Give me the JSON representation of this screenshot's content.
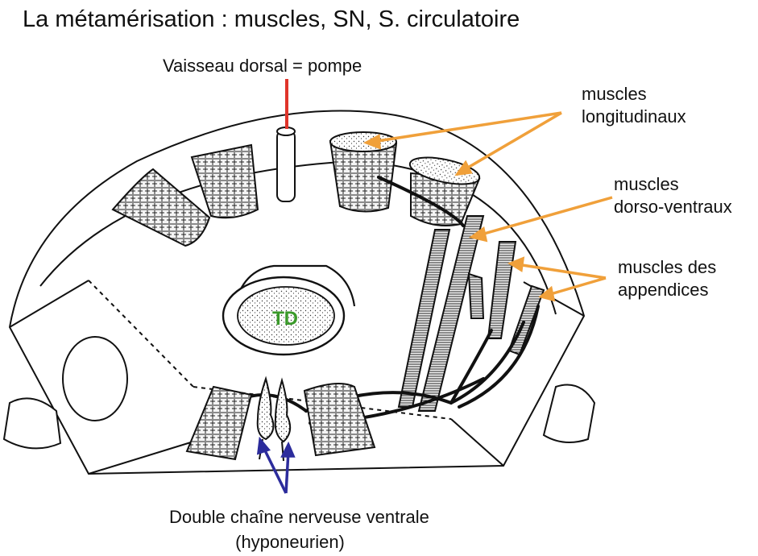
{
  "title": "La métamérisation : muscles, SN, S. circulatoire",
  "labels": {
    "vaisseau": "Vaisseau dorsal = pompe",
    "longitudinaux": [
      "muscles",
      "longitudinaux"
    ],
    "dorso_ventraux": [
      "muscles",
      "dorso-ventraux"
    ],
    "appendices": [
      "muscles des",
      "appendices"
    ],
    "chaine": [
      "Double chaîne nerveuse ventrale",
      "(hyponeurien)"
    ],
    "td": "TD"
  },
  "colors": {
    "vaisseau_arrow": "#e0342a",
    "muscle_arrows": "#f0a03a",
    "nerve_arrows": "#2c2c9c",
    "td_label": "#3a9a2a",
    "drawing": "#111111"
  }
}
